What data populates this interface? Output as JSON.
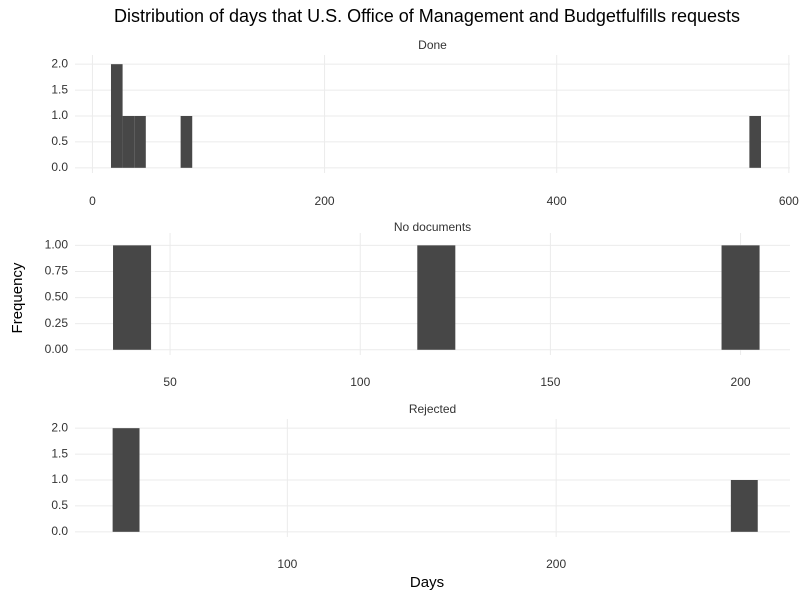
{
  "title": "Distribution of days that U.S. Office of Management and Budgetfulfills requests",
  "x_label": "Days",
  "y_label": "Frequency",
  "chart_data": [
    {
      "type": "histogram",
      "title": "Done",
      "color": "#474747",
      "grid": true,
      "bins": [
        16,
        26,
        36,
        46,
        56,
        66,
        76,
        86,
        96,
        106,
        116,
        126,
        136,
        146,
        156,
        166,
        176,
        186,
        196,
        206,
        216,
        226,
        236,
        246,
        256,
        266,
        276,
        286,
        296,
        306,
        316,
        326,
        336,
        346,
        356,
        366,
        376,
        386,
        396,
        406,
        416,
        426,
        436,
        446,
        456,
        466,
        476,
        486,
        496,
        506,
        516,
        526,
        536,
        546,
        556,
        566,
        576
      ],
      "values": [
        2,
        1,
        1,
        0,
        0,
        0,
        1,
        0,
        0,
        0,
        0,
        0,
        0,
        0,
        0,
        0,
        0,
        0,
        0,
        0,
        0,
        0,
        0,
        0,
        0,
        0,
        0,
        0,
        0,
        0,
        0,
        0,
        0,
        0,
        0,
        0,
        0,
        0,
        0,
        0,
        0,
        0,
        0,
        0,
        0,
        0,
        0,
        0,
        0,
        0,
        0,
        0,
        0,
        0,
        0,
        1
      ],
      "xlim": [
        -15,
        601
      ],
      "xticks": [
        0,
        200,
        400,
        600
      ],
      "ylim": [
        -0.1,
        2.1
      ],
      "yticks": [
        {
          "value": 0,
          "label": "0.0"
        },
        0.5,
        {
          "value": 1,
          "label": "1.0"
        },
        1.5,
        {
          "value": 2,
          "label": "2.0"
        }
      ]
    },
    {
      "type": "histogram",
      "title": "No documents",
      "color": "#474747",
      "grid": true,
      "bins": [
        35,
        45,
        55,
        65,
        75,
        85,
        95,
        105,
        115,
        125,
        135,
        145,
        155,
        165,
        175,
        185,
        195,
        205
      ],
      "values": [
        1,
        0,
        0,
        0,
        0,
        0,
        0,
        0,
        1,
        0,
        0,
        0,
        0,
        0,
        0,
        0,
        1
      ],
      "xlim": [
        25,
        213
      ],
      "xticks": [
        50,
        100,
        150,
        200
      ],
      "ylim": [
        -0.05,
        1.08
      ],
      "yticks": [
        {
          "value": 0,
          "label": "0.00"
        },
        0.25,
        {
          "value": 0.5,
          "label": "0.50"
        },
        0.75,
        {
          "value": 1,
          "label": "1.00"
        }
      ]
    },
    {
      "type": "histogram",
      "title": "Rejected",
      "color": "#474747",
      "grid": true,
      "bins": [
        35,
        45,
        55,
        65,
        75,
        85,
        95,
        105,
        115,
        125,
        135,
        145,
        155,
        165,
        175,
        185,
        195,
        205,
        215,
        225,
        235,
        245,
        255,
        265,
        275
      ],
      "values": [
        2,
        0,
        0,
        0,
        0,
        0,
        0,
        0,
        0,
        0,
        0,
        0,
        0,
        0,
        0,
        0,
        0,
        0,
        0,
        0,
        0,
        0,
        0,
        1
      ],
      "xlim": [
        21,
        287
      ],
      "xticks": [
        100,
        200
      ],
      "ylim": [
        -0.1,
        2.1
      ],
      "yticks": [
        {
          "value": 0,
          "label": "0.0"
        },
        0.5,
        {
          "value": 1,
          "label": "1.0"
        },
        1.5,
        {
          "value": 2,
          "label": "2.0"
        }
      ]
    }
  ]
}
